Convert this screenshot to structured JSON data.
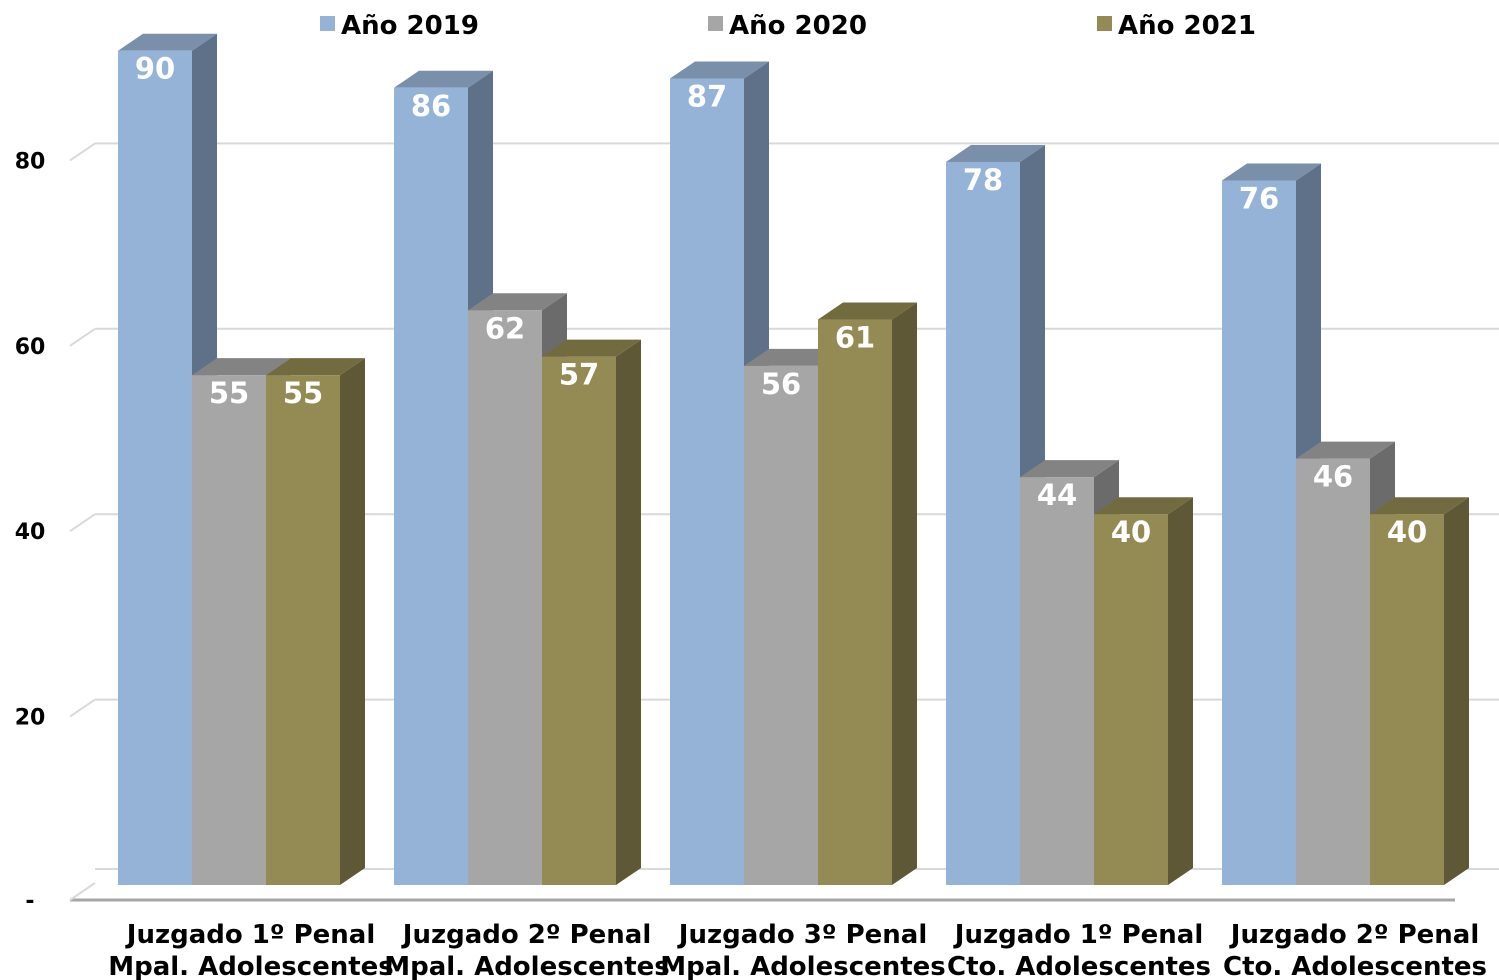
{
  "chart_data": {
    "type": "bar",
    "title": "",
    "xlabel": "",
    "ylabel": "",
    "ylim": [
      0,
      100
    ],
    "yticks": [
      {
        "value": 0,
        "label": "-"
      },
      {
        "value": 20,
        "label": "20"
      },
      {
        "value": 40,
        "label": "40"
      },
      {
        "value": 60,
        "label": "60"
      },
      {
        "value": 80,
        "label": "80"
      }
    ],
    "grid": true,
    "legend_position": "top",
    "categories": [
      [
        "Juzgado 1º Penal",
        "Mpal. Adolescentes"
      ],
      [
        "Juzgado 2º Penal",
        "Mpal. Adolescentes"
      ],
      [
        "Juzgado 3º Penal",
        "Mpal. Adolescentes"
      ],
      [
        "Juzgado 1º Penal",
        "Cto. Adolescentes"
      ],
      [
        "Juzgado 2º Penal",
        "Cto. Adolescentes"
      ]
    ],
    "series": [
      {
        "name": "Año 2019",
        "color": "#95b3d7",
        "side": "#5f7189",
        "top": "#7a8fa9",
        "values": [
          90,
          86,
          87,
          78,
          76
        ]
      },
      {
        "name": "Año 2020",
        "color": "#a6a6a6",
        "side": "#6b6b6b",
        "top": "#838383",
        "values": [
          55,
          62,
          56,
          44,
          46
        ]
      },
      {
        "name": "Año 2021",
        "color": "#948a54",
        "side": "#5e5837",
        "top": "#736b40",
        "values": [
          55,
          57,
          61,
          40,
          40
        ]
      }
    ]
  }
}
